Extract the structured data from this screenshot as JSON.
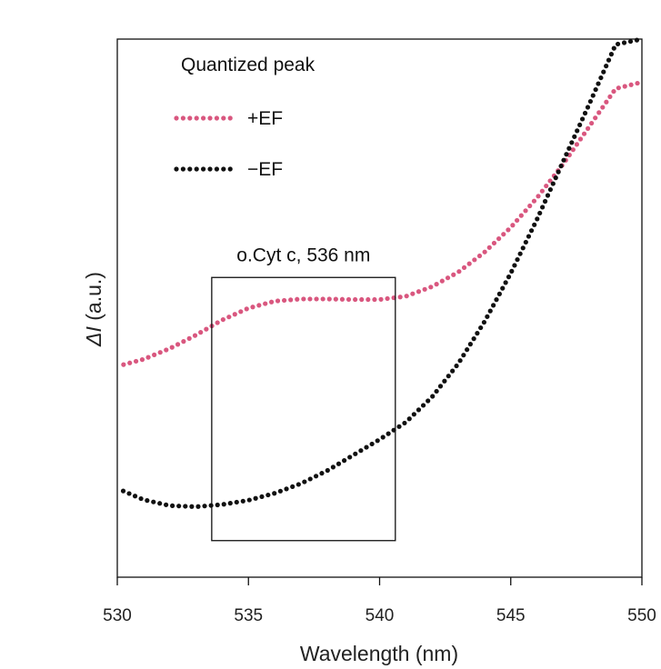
{
  "chart_data": {
    "type": "scatter",
    "title": "",
    "xlabel": "Wavelength (nm)",
    "ylabel_italic": "ΔI",
    "ylabel_unit": " (a.u.)",
    "xlim": [
      530,
      550
    ],
    "ylim": [
      0,
      100
    ],
    "x_ticks": [
      530,
      535,
      540,
      545,
      550
    ],
    "x_tick_labels": [
      "530",
      "535",
      "540",
      "545",
      "550"
    ],
    "y_ticks_shown": false,
    "grid": false,
    "legend": {
      "title": "Quantized peak",
      "placement": "top-left"
    },
    "annotation": {
      "text": "o.Cyt c, 536 nm",
      "x_range": [
        533.6,
        540.6
      ],
      "y_range": [
        6.8,
        55.7
      ]
    },
    "series": [
      {
        "name": "+EF",
        "color": "#d9577f",
        "x": [
          530,
          531,
          532,
          533,
          534,
          535,
          536,
          537,
          538,
          539,
          540,
          541,
          542,
          543,
          544,
          545,
          546,
          547,
          548,
          549,
          550
        ],
        "y": [
          39.2,
          40.5,
          42.5,
          45.0,
          47.8,
          50.0,
          51.3,
          51.7,
          51.7,
          51.6,
          51.6,
          52.2,
          54.0,
          56.7,
          60.4,
          65.0,
          70.5,
          76.8,
          83.8,
          90.8,
          92.0
        ]
      },
      {
        "name": "−EF",
        "color": "#111111",
        "x": [
          530,
          531,
          532,
          533,
          534,
          535,
          536,
          537,
          538,
          539,
          540,
          541,
          542,
          543,
          544,
          545,
          546,
          547,
          548,
          549,
          550
        ],
        "y": [
          16.5,
          14.4,
          13.3,
          13.1,
          13.5,
          14.3,
          15.6,
          17.4,
          19.8,
          22.7,
          25.6,
          28.8,
          33.5,
          39.7,
          47.5,
          56.5,
          66.5,
          77.3,
          88.0,
          99.0,
          100
        ]
      }
    ]
  }
}
